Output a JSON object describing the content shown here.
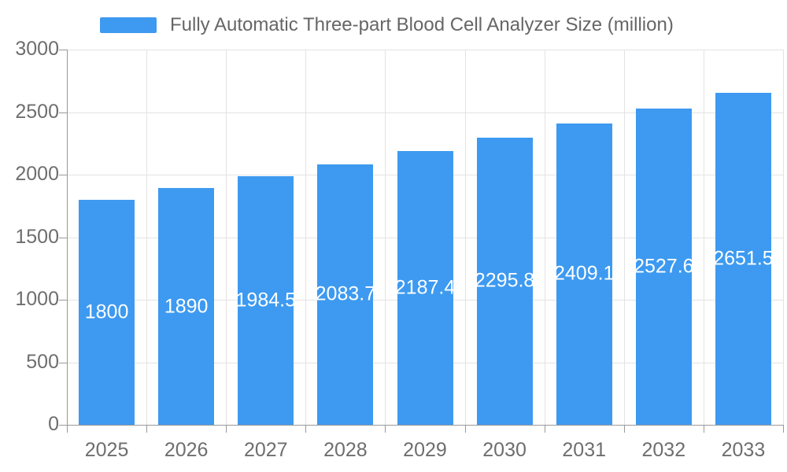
{
  "legend": {
    "label": "Fully Automatic Three-part Blood Cell Analyzer Size (million)",
    "position": "top"
  },
  "chart_data": {
    "type": "bar",
    "title": "Fully Automatic Three-part Blood Cell Analyzer Size (million)",
    "series_name": "Fully Automatic Three-part Blood Cell Analyzer Size (million)",
    "categories": [
      "2025",
      "2026",
      "2027",
      "2028",
      "2029",
      "2030",
      "2031",
      "2032",
      "2033"
    ],
    "values": [
      1800,
      1890,
      1984.5,
      2083.7,
      2187.4,
      2295.8,
      2409.1,
      2527.6,
      2651.5
    ],
    "value_labels": [
      "1800",
      "1890",
      "1984.5",
      "2083.7",
      "2187.4",
      "2295.8",
      "2409.1",
      "2527.6",
      "2651.5"
    ],
    "value_label_position": "inside-center",
    "xlabel": "",
    "ylabel": "",
    "ylim": [
      0,
      3000
    ],
    "ytick_step": 500,
    "yticks": [
      "0",
      "500",
      "1000",
      "1500",
      "2000",
      "2500",
      "3000"
    ],
    "grid": true,
    "legend_position": "top",
    "colors": {
      "bar": "#3D9AF0",
      "grid": "#e3e3e3",
      "axis": "#999999",
      "tick_label": "#6e6e6e",
      "legend_text": "#666666",
      "value_label": "#ffffff",
      "background": "#ffffff"
    }
  }
}
